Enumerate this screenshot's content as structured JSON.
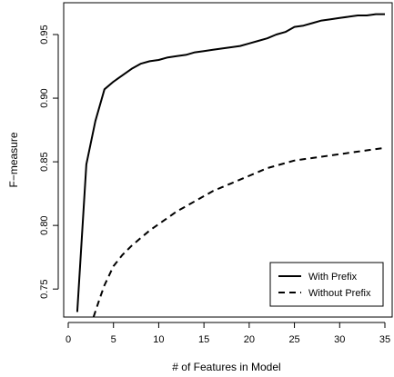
{
  "chart_data": {
    "type": "line",
    "title": "",
    "xlabel": "# of Features in Model",
    "ylabel": "F−measure",
    "xlim": [
      0,
      35
    ],
    "ylim": [
      0.728,
      0.975
    ],
    "xticks": [
      0,
      5,
      10,
      15,
      20,
      25,
      30,
      35
    ],
    "yticks": [
      0.75,
      0.8,
      0.85,
      0.9,
      0.95
    ],
    "ytick_labels": [
      "0.75",
      "0.80",
      "0.85",
      "0.90",
      "0.95"
    ],
    "grid": false,
    "legend_position": "bottom-right",
    "series": [
      {
        "name": "With Prefix",
        "line_style": "solid",
        "color": "#000000",
        "x": [
          1,
          2,
          3,
          4,
          5,
          6,
          7,
          8,
          9,
          10,
          11,
          12,
          13,
          14,
          15,
          16,
          17,
          18,
          19,
          20,
          21,
          22,
          23,
          24,
          25,
          26,
          27,
          28,
          29,
          30,
          31,
          32,
          33,
          34,
          35
        ],
        "y": [
          0.732,
          0.848,
          0.882,
          0.907,
          0.913,
          0.918,
          0.923,
          0.927,
          0.929,
          0.93,
          0.932,
          0.933,
          0.934,
          0.936,
          0.937,
          0.938,
          0.939,
          0.94,
          0.941,
          0.943,
          0.945,
          0.947,
          0.95,
          0.952,
          0.956,
          0.957,
          0.959,
          0.961,
          0.962,
          0.963,
          0.964,
          0.965,
          0.965,
          0.966,
          0.966
        ]
      },
      {
        "name": "Without Prefix",
        "line_style": "dashed",
        "color": "#000000",
        "x": [
          2.8,
          3.5,
          4,
          5,
          6,
          7,
          8,
          9,
          10,
          11,
          12,
          13,
          14,
          15,
          16,
          17,
          18,
          19,
          20,
          21,
          22,
          23,
          24,
          25,
          26,
          27,
          28,
          29,
          30,
          31,
          32,
          33,
          34,
          35
        ],
        "y": [
          0.728,
          0.743,
          0.753,
          0.768,
          0.777,
          0.784,
          0.79,
          0.796,
          0.801,
          0.806,
          0.811,
          0.815,
          0.819,
          0.823,
          0.827,
          0.83,
          0.833,
          0.836,
          0.839,
          0.842,
          0.845,
          0.847,
          0.849,
          0.851,
          0.852,
          0.853,
          0.854,
          0.855,
          0.856,
          0.857,
          0.858,
          0.859,
          0.86,
          0.861
        ]
      }
    ]
  }
}
